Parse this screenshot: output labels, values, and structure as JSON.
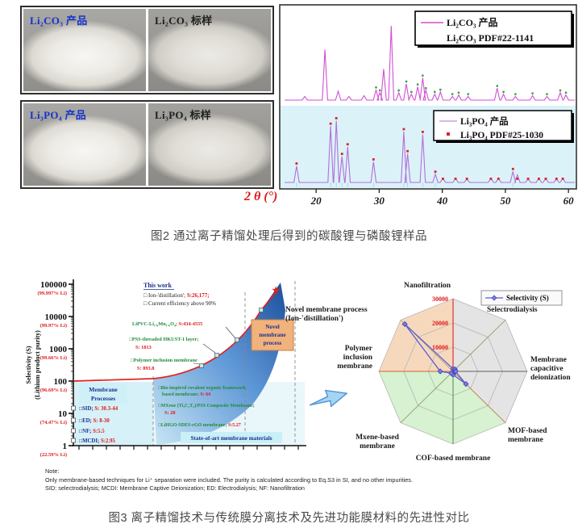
{
  "figure2": {
    "caption": "图2  通过离子精馏处理后得到的碳酸锂与磷酸锂样品",
    "photos": {
      "li2co3_product": "Li₂CO₃ 产品",
      "li2co3_standard": "Li₂CO₃ 标样",
      "li3po4_product": "Li₃PO₄ 产品",
      "li3po4_standard": "Li₃PO₄ 标样"
    }
  },
  "figure3": {
    "caption": "图3  离子精馏技术与传统膜分离技术及先进功能膜材料的先进性对比",
    "note_title": "Note:",
    "note_line1": "Only membrane-based techniques for Li⁺ separation were included. The purity is calculated according to Eq.S3 in SI, and no other impurities.",
    "note_line2": "SID: selectrodialysis; MCDI: Membrane Captive Deionization; ED: Electrodialysis; NF: Nanofiltration"
  },
  "chart_data": [
    {
      "type": "line",
      "title": "XRD patterns of ion-distillation products vs standards",
      "xlabel": "2 θ (°)",
      "xlim": [
        15,
        61
      ],
      "xticks": [
        20,
        30,
        40,
        50,
        60
      ],
      "panels": [
        {
          "series": "Li₂CO₃ 产品",
          "reference": "Li₂CO₃ PDF#22-1141",
          "line_color": "#d24fd2",
          "ref_color": "#3a9a3a",
          "background": "#ffffff",
          "peaks": [
            [
              18.2,
              0.05
            ],
            [
              21.4,
              0.68
            ],
            [
              23.5,
              0.12
            ],
            [
              25.2,
              0.05
            ],
            [
              27.6,
              0.06
            ],
            [
              29.5,
              0.14
            ],
            [
              30.1,
              0.1
            ],
            [
              30.7,
              0.42
            ],
            [
              31.9,
              1.0
            ],
            [
              33.1,
              0.1
            ],
            [
              34.3,
              0.22
            ],
            [
              35.1,
              0.08
            ],
            [
              36.1,
              0.18
            ],
            [
              36.9,
              0.3
            ],
            [
              37.4,
              0.13
            ],
            [
              38.8,
              0.08
            ],
            [
              39.7,
              0.11
            ],
            [
              41.6,
              0.05
            ],
            [
              42.6,
              0.07
            ],
            [
              44.1,
              0.05
            ],
            [
              48.7,
              0.16
            ],
            [
              49.7,
              0.08
            ],
            [
              51.6,
              0.05
            ],
            [
              54.3,
              0.06
            ],
            [
              56.6,
              0.05
            ],
            [
              58.7,
              0.1
            ],
            [
              59.6,
              0.07
            ]
          ]
        },
        {
          "series": "Li₃PO₄ 产品",
          "reference": "Li₃PO₄ PDF#25-1030",
          "line_color": "#b070d8",
          "ref_color": "#e02222",
          "background": "#dcf2f9",
          "peaks": [
            [
              16.9,
              0.24
            ],
            [
              22.3,
              0.82
            ],
            [
              23.2,
              0.9
            ],
            [
              24.1,
              0.38
            ],
            [
              25.0,
              0.52
            ],
            [
              29.1,
              0.3
            ],
            [
              33.9,
              0.74
            ],
            [
              34.5,
              0.42
            ],
            [
              36.9,
              0.7
            ],
            [
              38.9,
              0.12
            ],
            [
              40.1,
              0.06
            ],
            [
              42.1,
              0.06
            ],
            [
              43.9,
              0.05
            ],
            [
              47.7,
              0.06
            ],
            [
              48.9,
              0.06
            ],
            [
              51.2,
              0.16
            ],
            [
              51.9,
              0.11
            ],
            [
              53.6,
              0.05
            ],
            [
              55.3,
              0.06
            ],
            [
              56.4,
              0.06
            ],
            [
              58.1,
              0.05
            ],
            [
              59.1,
              0.06
            ]
          ]
        }
      ]
    },
    {
      "type": "scatter",
      "ylabel_line1": "Selectivity (S)",
      "ylabel_line2": "(Lithium product purity)",
      "yticks": [
        {
          "s": "100000",
          "purity": "(99.997% Li)"
        },
        {
          "s": "10000",
          "purity": "(99.97% Li)"
        },
        {
          "s": "1000",
          "purity": "(99.66% Li)"
        },
        {
          "s": "100",
          "purity": "(96.69% Li)"
        },
        {
          "s": "10",
          "purity": "(74.47% Li)"
        },
        {
          "s": "1",
          "purity": "(22.59% Li)"
        }
      ],
      "this_work": {
        "title": "This work",
        "item1": "□ Ion-'distillation'; ",
        "item1_value": "S:26,177;",
        "item2": "□ Current efficiency above 90%"
      },
      "zones": {
        "membrane1": "Membrane",
        "membrane2": "Processes",
        "state_of_art": "State-of-art membrane materials",
        "novel1": "Novel",
        "novel2": "membrane",
        "novel3": "process"
      },
      "conventional": [
        {
          "name": "□SID; ",
          "s": "S: 30.3-44"
        },
        {
          "name": "□ED; ",
          "s": "S: 8-30"
        },
        {
          "name": "□NF; ",
          "s": "S:5.5"
        },
        {
          "name": "□MCDI; ",
          "s": "S:2.95"
        }
      ],
      "materials": {
        "pvc": {
          "name": "LiPVC-Li₁.₆Mn₁.₆O₄; ",
          "s": "S:434-4555"
        },
        "pss": {
          "name": "□PSS-threaded HKUST-1 layer;",
          "s": "S: 1813"
        },
        "pim": {
          "name": "□Polymer inclusion membrane",
          "s": "S: 893.8"
        },
        "cof": {
          "name": "□Bio-inspired covalent organic framework",
          "name2": "based membrane; ",
          "s": "S: 64"
        },
        "mxene": {
          "name": "□MXene (Ti₃C₂T₂)/PSS Composite Membrane;",
          "s": "S: 28"
        },
        "hgo": {
          "name": "□LiHGO-SDES-rGO membrane; ",
          "s": "S:5.27"
        }
      },
      "colors": {
        "curve": "#e02020",
        "wedge_dark": "#1b4f9c",
        "wedge_light": "#c9e6f5",
        "green_text": "#1f8c3b",
        "red_text": "#e01818",
        "navy_text": "#1b2f8f"
      }
    },
    {
      "type": "radar",
      "legend": "Selectivity (S)",
      "rticks": [
        "10000",
        "20000",
        "30000"
      ],
      "rmax": 30000,
      "axes": [
        {
          "label": [
            "Nanofiltration"
          ],
          "value": 5.5
        },
        {
          "label": [
            "Selectrodialysis"
          ],
          "value": 44
        },
        {
          "label": [
            "Membrane",
            "capacitive",
            "deionization"
          ],
          "value": 2.95
        },
        {
          "label": [
            "MOF-based",
            "membrane"
          ],
          "value": 1813
        },
        {
          "label": [
            "COF-based membrane"
          ],
          "value": 64
        },
        {
          "label": [
            "Mxene-based",
            "membrane"
          ],
          "value": 28
        },
        {
          "label": [
            "Polymer",
            "inclusion",
            "membrane"
          ],
          "value": 893.8
        },
        {
          "label": [
            "Novel membrane process",
            "(Ion-'distillation')"
          ],
          "value": 26177
        }
      ],
      "colors": {
        "series": "#5b5bd6",
        "tick": "#e01818",
        "sector_peach": "#f6d9bd",
        "sector_gray": "#e4e4e4",
        "sector_green": "#d6f2d0"
      }
    }
  ]
}
